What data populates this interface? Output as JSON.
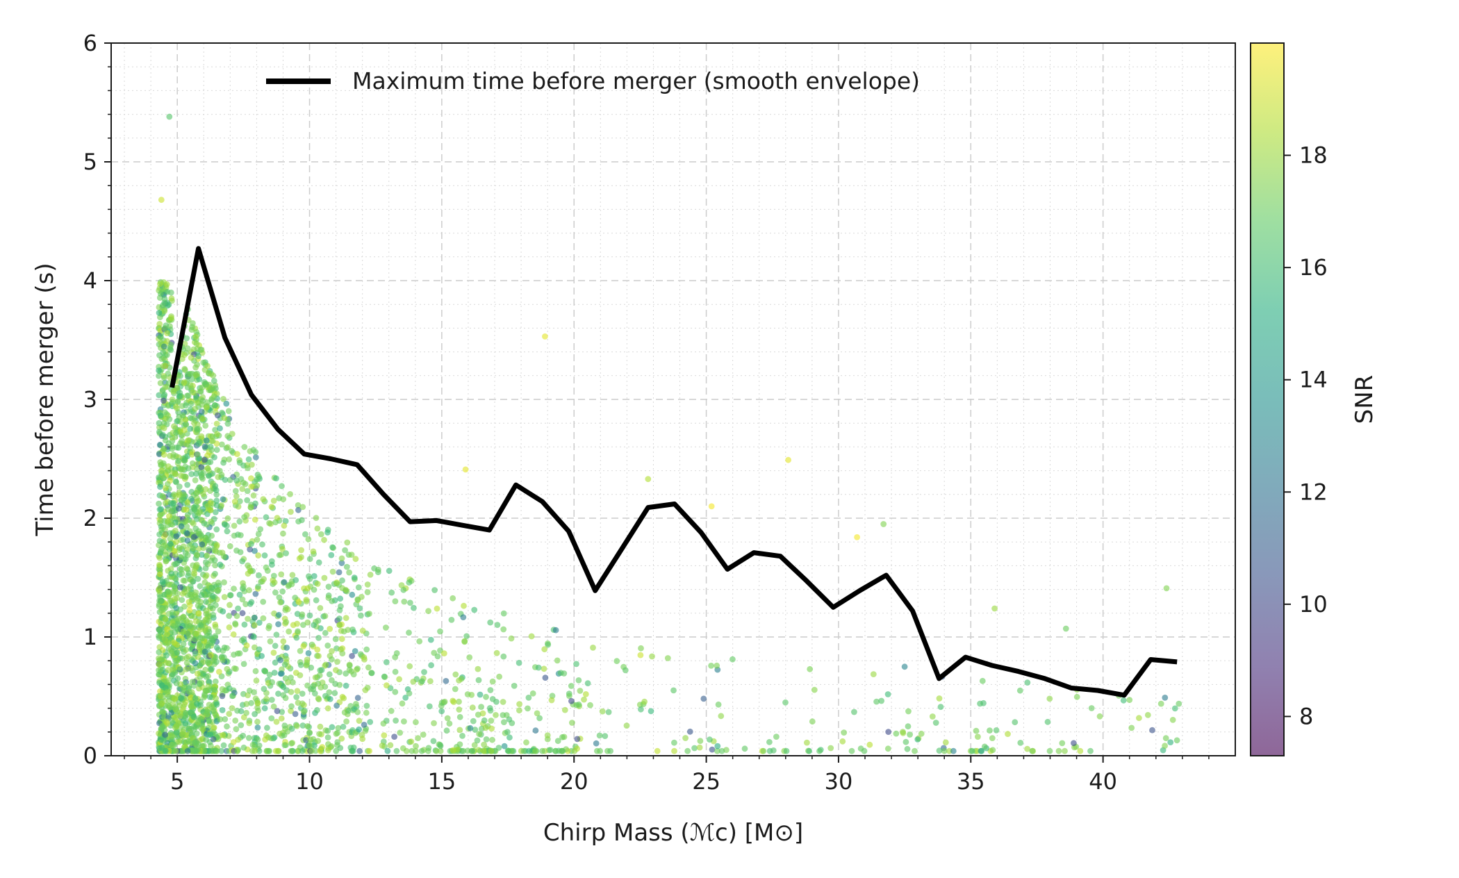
{
  "chart_data": {
    "type": "scatter",
    "title": "",
    "xlabel": "Chirp Mass (ℳc) [M⊙]",
    "ylabel": "Time before merger (s)",
    "xlim": [
      2.5,
      45
    ],
    "ylim": [
      0,
      6
    ],
    "xticks": [
      5,
      10,
      15,
      20,
      25,
      30,
      35,
      40
    ],
    "yticks": [
      0,
      1,
      2,
      3,
      4,
      5,
      6
    ],
    "grid": true,
    "colorbar": {
      "label": "SNR",
      "range": [
        7.3,
        20
      ],
      "ticks": [
        8,
        10,
        12,
        14,
        16,
        18
      ],
      "colormap": "viridis",
      "alpha": 0.6
    },
    "legend": {
      "position": "top-center",
      "entries": [
        "Maximum time before merger (smooth envelope)"
      ]
    },
    "envelope": {
      "name": "Maximum time before merger (smooth envelope)",
      "color": "#000000",
      "x": [
        4.8,
        5.8,
        6.8,
        7.8,
        8.8,
        9.8,
        10.8,
        11.8,
        12.8,
        13.8,
        14.8,
        15.8,
        16.8,
        17.8,
        18.8,
        19.8,
        20.8,
        21.8,
        22.8,
        23.8,
        24.8,
        25.8,
        26.8,
        27.8,
        28.8,
        29.8,
        30.8,
        31.8,
        32.8,
        33.8,
        34.8,
        35.8,
        36.8,
        37.8,
        38.8,
        39.8,
        40.8,
        41.8,
        42.8
      ],
      "y": [
        3.1,
        4.27,
        3.52,
        3.04,
        2.75,
        2.54,
        2.5,
        2.45,
        2.2,
        1.97,
        1.98,
        1.94,
        1.9,
        2.28,
        2.14,
        1.89,
        1.39,
        1.74,
        2.09,
        2.12,
        1.88,
        1.57,
        1.71,
        1.68,
        1.47,
        1.25,
        1.39,
        1.52,
        1.22,
        0.65,
        0.83,
        0.76,
        0.71,
        0.65,
        0.57,
        0.55,
        0.51,
        0.81,
        0.79
      ]
    },
    "scatter_summary": {
      "points_approx": 3000,
      "density_profile": "Dense cloud between chirp mass 4.3 and 15 with time decaying roughly as a power law; sparse points extend to chirp mass 43 below the envelope.",
      "outliers": [
        {
          "x": 4.7,
          "y": 5.38,
          "snr": 16.5
        },
        {
          "x": 4.4,
          "y": 4.68,
          "snr": 19.0
        },
        {
          "x": 18.9,
          "y": 3.53,
          "snr": 19.5
        },
        {
          "x": 28.1,
          "y": 2.49,
          "snr": 19.5
        },
        {
          "x": 15.9,
          "y": 2.41,
          "snr": 19.5
        },
        {
          "x": 22.8,
          "y": 2.33,
          "snr": 18.5
        },
        {
          "x": 25.2,
          "y": 2.1,
          "snr": 19.8
        },
        {
          "x": 31.7,
          "y": 1.95,
          "snr": 17.5
        },
        {
          "x": 30.7,
          "y": 1.84,
          "snr": 19.8
        },
        {
          "x": 35.9,
          "y": 1.24,
          "snr": 18.0
        },
        {
          "x": 42.4,
          "y": 1.41,
          "snr": 17.5
        },
        {
          "x": 38.6,
          "y": 1.07,
          "snr": 17.0
        },
        {
          "x": 32.5,
          "y": 0.75,
          "snr": 13.0
        },
        {
          "x": 24.9,
          "y": 0.48,
          "snr": 11.0
        },
        {
          "x": 19.9,
          "y": 0.46,
          "snr": 10.0
        }
      ]
    }
  }
}
